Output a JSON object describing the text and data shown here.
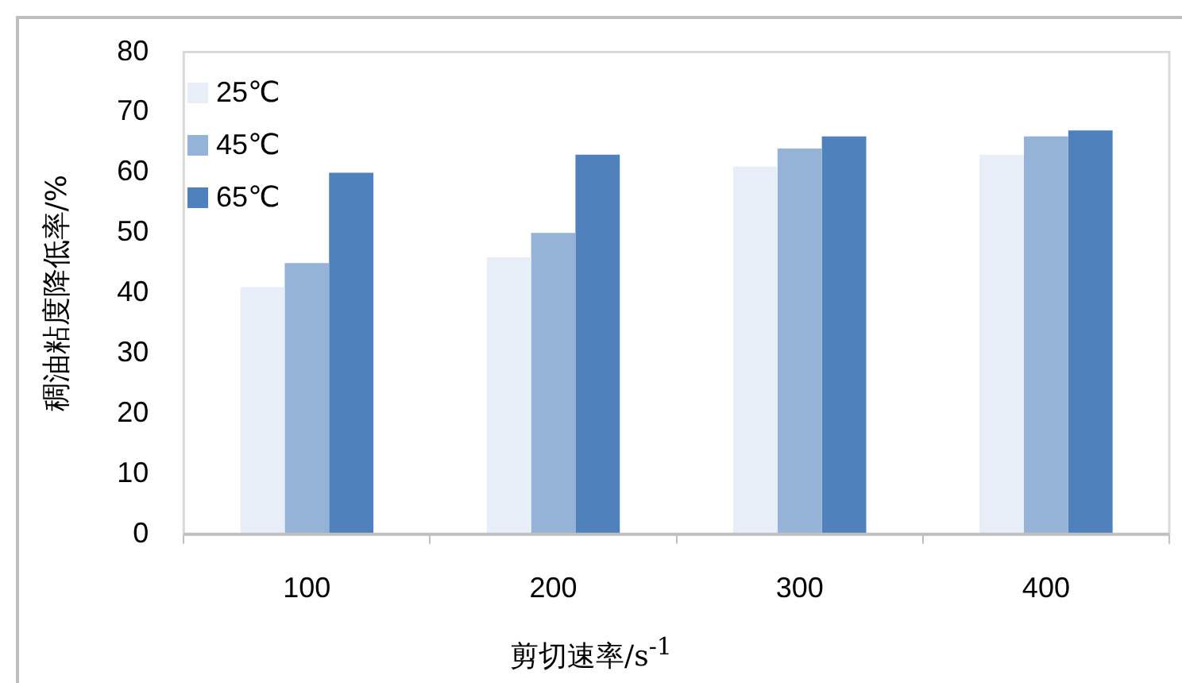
{
  "chart_data": {
    "type": "bar",
    "xlabel": "剪切速率/s$^{-1}$",
    "ylabel": "稠油粘度降低率/%",
    "categories": [
      "100",
      "200",
      "300",
      "400"
    ],
    "series": [
      {
        "name": "25℃",
        "color": "#e8eef7",
        "values": [
          41,
          46,
          61,
          63
        ]
      },
      {
        "name": "45℃",
        "color": "#95b3d7",
        "values": [
          45,
          50,
          64,
          66
        ]
      },
      {
        "name": "65℃",
        "color": "#4f81bd",
        "values": [
          60,
          63,
          66,
          67
        ]
      }
    ],
    "ylim": [
      0,
      80
    ],
    "yticks": [
      0,
      10,
      20,
      30,
      40,
      50,
      60,
      70,
      80
    ],
    "grid": false,
    "legend": "top left"
  }
}
